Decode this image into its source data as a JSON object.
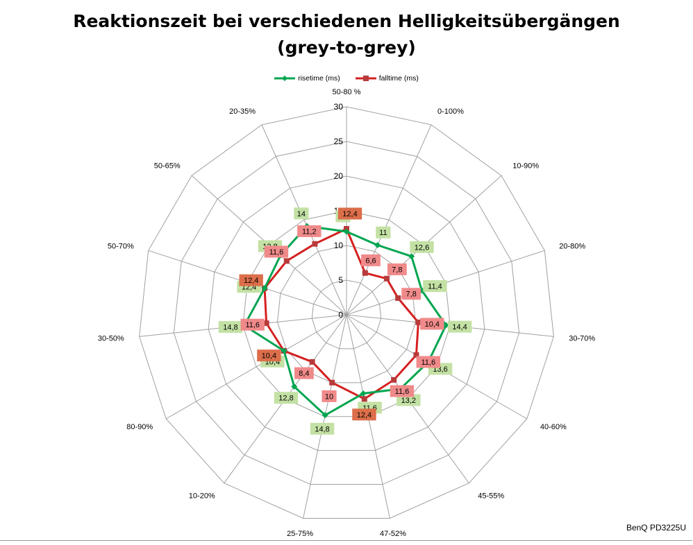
{
  "chart_data": {
    "type": "radar",
    "title_lines": [
      "Reaktionszeit bei verschiedenen Helligkeitsübergängen",
      "(grey-to-grey)"
    ],
    "categories": [
      "50-80 %",
      "0-100%",
      "10-90%",
      "20-80%",
      "30-70%",
      "40-60%",
      "45-55%",
      "47-52%",
      "25-75%",
      "10-20%",
      "80-90%",
      "30-50%",
      "50-70%",
      "50-65%",
      "20-35%"
    ],
    "radial_ticks": [
      "0",
      "5",
      "10",
      "15",
      "20",
      "25",
      "30"
    ],
    "rmax": 30,
    "series": [
      {
        "name": "risetime (ms)",
        "color": "#00a550",
        "marker": "diamond",
        "values": [
          12,
          11,
          12.6,
          11.4,
          14.4,
          13.6,
          13.2,
          11.6,
          14.8,
          12.8,
          10.4,
          14.8,
          12.4,
          12.8,
          14
        ],
        "labels": [
          "12",
          "11",
          "12,6",
          "11,4",
          "14,4",
          "13,6",
          "13,2",
          "11,6",
          "14,8",
          "12,8",
          "10,4",
          "14,8",
          "12,4",
          "12,8",
          "14"
        ]
      },
      {
        "name": "falltime (ms)",
        "color": "#d42020",
        "marker": "square",
        "values": [
          12.4,
          6.6,
          7.8,
          7.8,
          10.4,
          11.6,
          11.6,
          12.4,
          10,
          8.4,
          10.4,
          11.6,
          12.4,
          11.6,
          11.2
        ],
        "labels": [
          "12,4",
          "6,6",
          "7,8",
          "7,8",
          "10,4",
          "11,6",
          "11,6",
          "12,4",
          "10",
          "8,4",
          "10,4",
          "11,6",
          "12,4",
          "11,6",
          "11,2"
        ]
      }
    ],
    "legend_position": "top",
    "grid": true
  },
  "credit": "BenQ PD3225U",
  "colors": {
    "rise_label_bg": "#c3e1a4",
    "fall_label_bg": "#f08a8a",
    "overlap_label_bg": "#dc6e4a",
    "grid": "#a0a0a0"
  }
}
